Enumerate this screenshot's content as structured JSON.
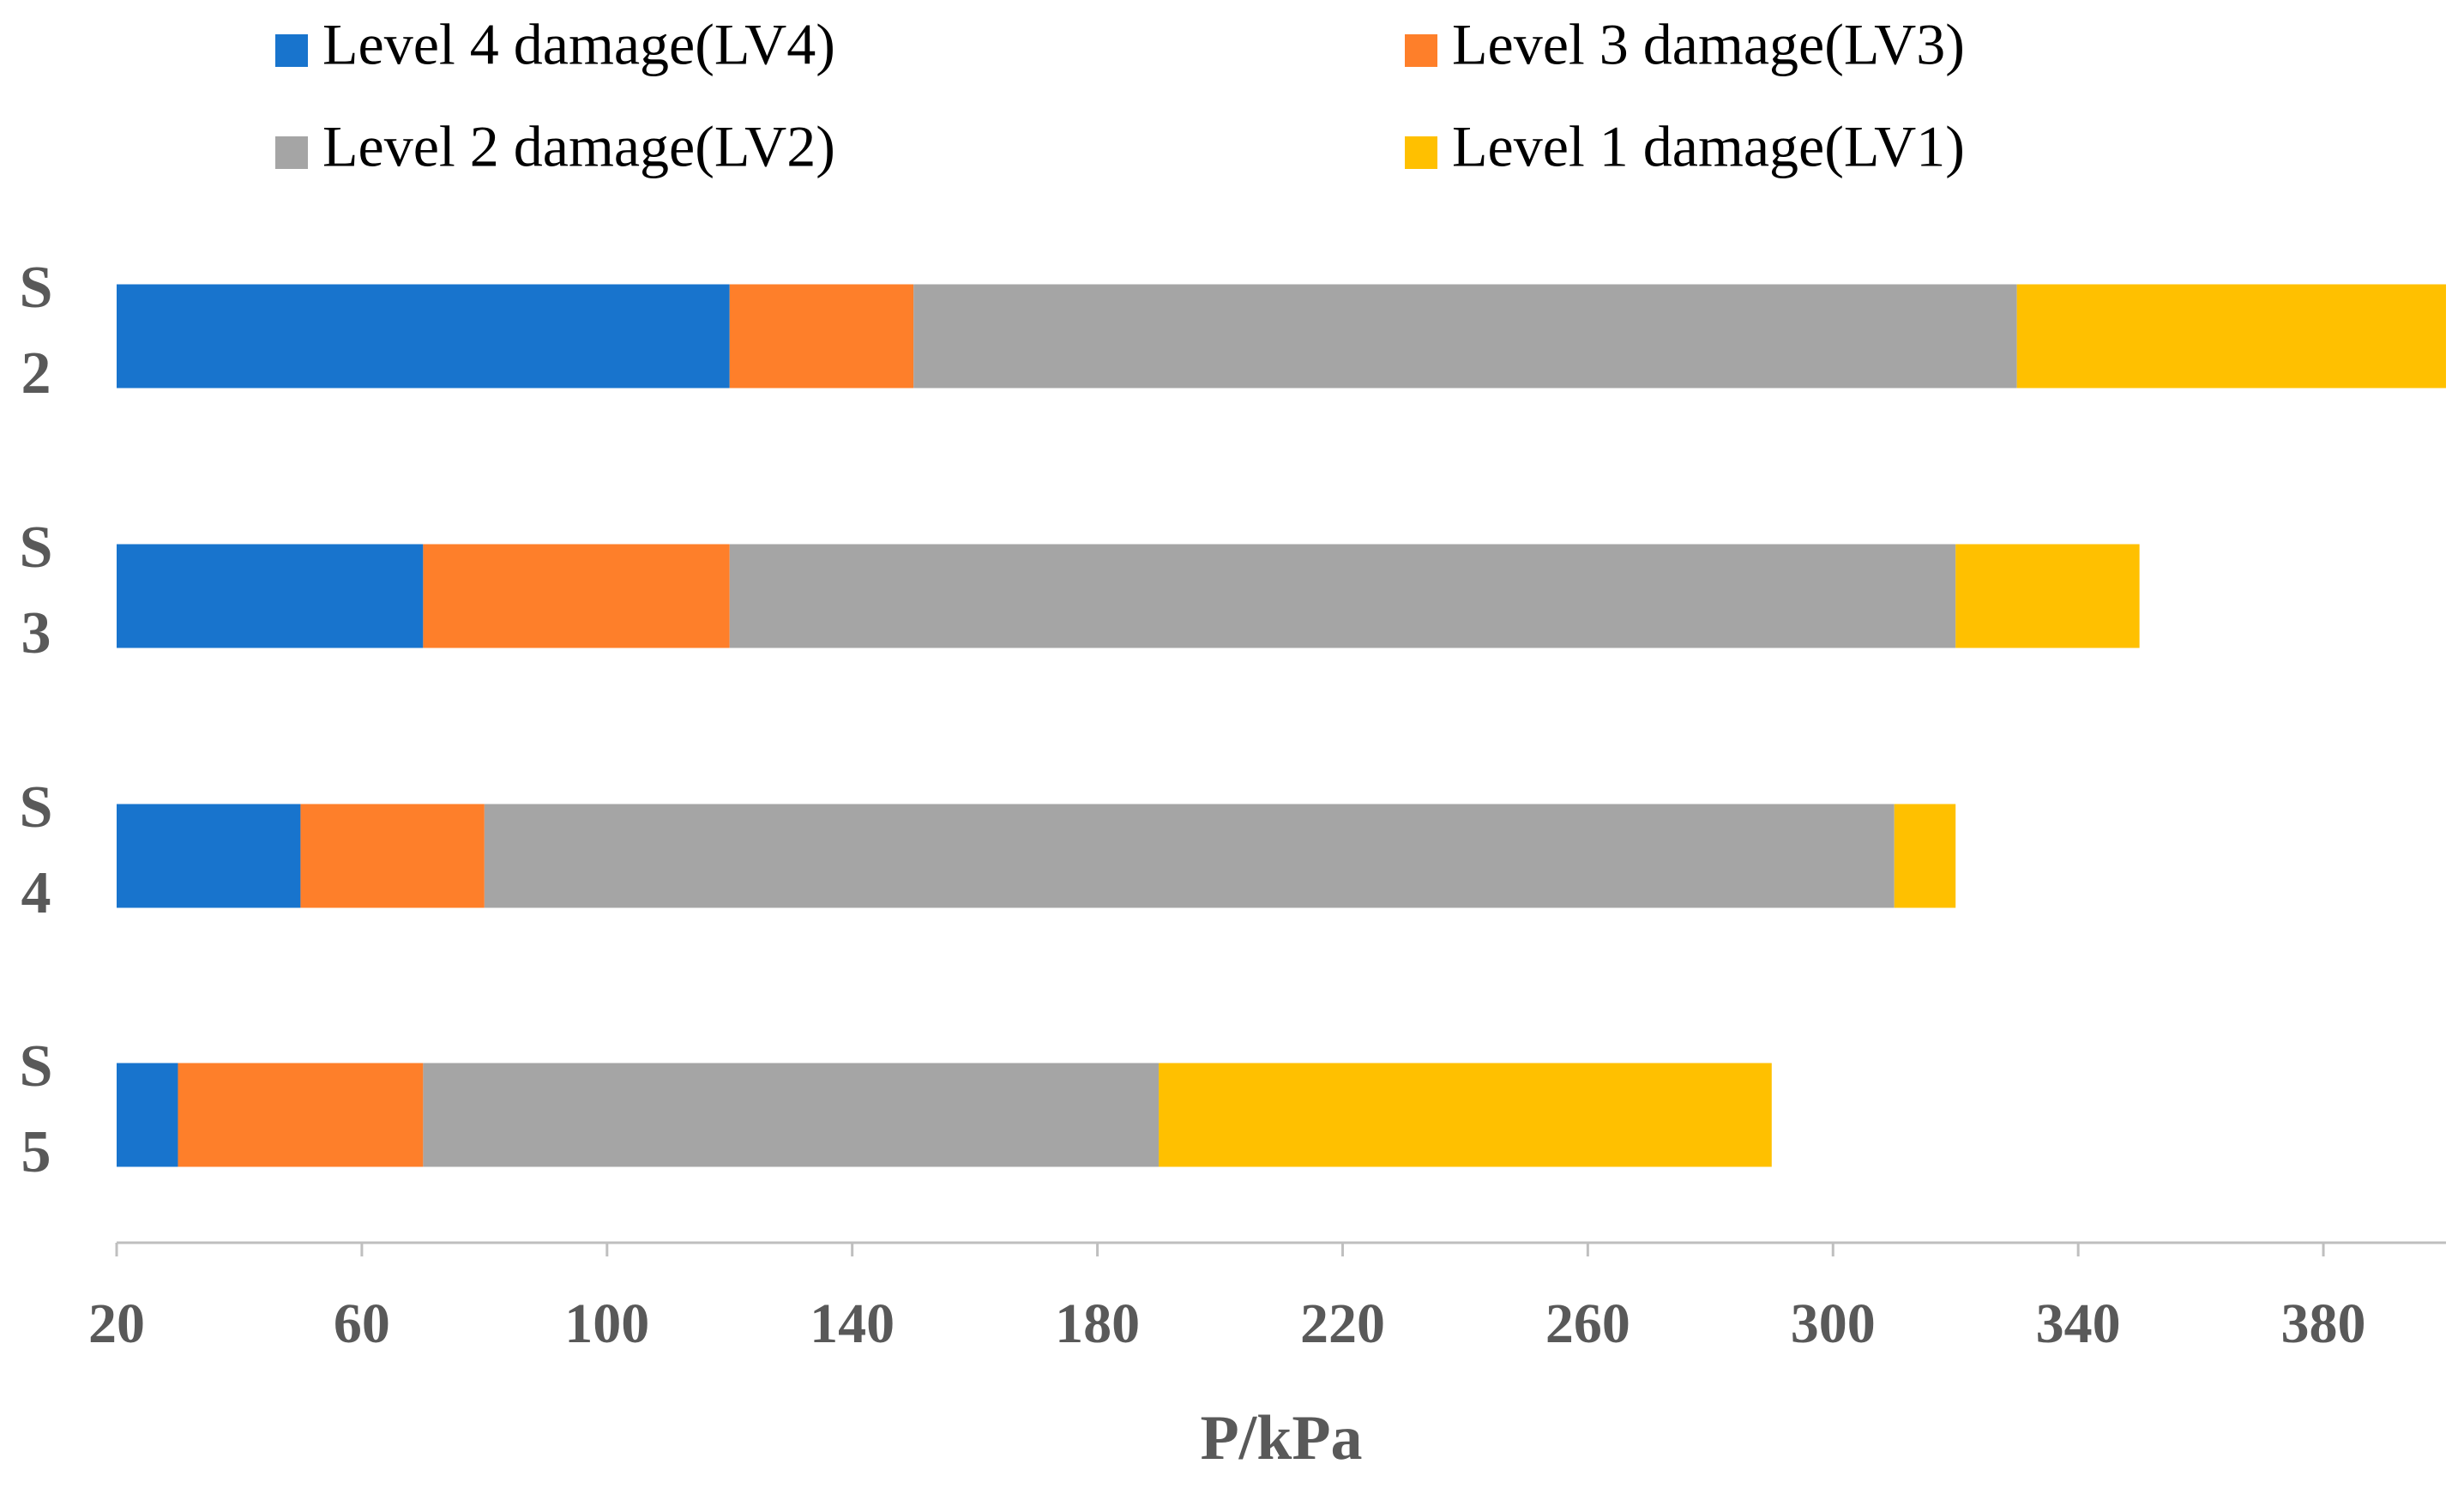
{
  "chart_data": {
    "type": "stacked-bar-horizontal",
    "categories": [
      "S2",
      "S3",
      "S4",
      "S5"
    ],
    "series": [
      {
        "name": "Level 4 damage(LV4)",
        "color": "#1874cd",
        "values": [
          120,
          70,
          50,
          30
        ]
      },
      {
        "name": "Level 3 damage(LV3)",
        "color": "#fe7f2a",
        "values": [
          30,
          50,
          30,
          40
        ]
      },
      {
        "name": "Level 2 damage(LV2)",
        "color": "#a5a5a5",
        "values": [
          180,
          200,
          230,
          120
        ]
      },
      {
        "name": "Level 1 damage(LV1)",
        "color": "#ffc000",
        "values": [
          70,
          30,
          10,
          100
        ]
      }
    ],
    "x_label": "P/kPa",
    "xlim": [
      20,
      400
    ],
    "xticks": [
      20,
      60,
      100,
      140,
      180,
      220,
      260,
      300,
      340,
      380
    ],
    "legend": "top"
  }
}
